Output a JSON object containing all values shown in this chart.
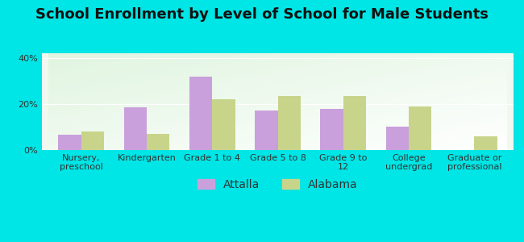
{
  "title": "School Enrollment by Level of School for Male Students",
  "categories": [
    "Nursery,\npreschool",
    "Kindergarten",
    "Grade 1 to 4",
    "Grade 5 to 8",
    "Grade 9 to\n12",
    "College\nundergrad",
    "Graduate or\nprofessional"
  ],
  "attalla": [
    6.5,
    18.5,
    32.0,
    17.0,
    18.0,
    10.0,
    0.0
  ],
  "alabama": [
    8.0,
    7.0,
    22.0,
    23.5,
    23.5,
    19.0,
    6.0
  ],
  "attalla_color": "#c9a0dc",
  "alabama_color": "#c8d48a",
  "ylim": [
    0,
    42
  ],
  "yticks": [
    0,
    20,
    40
  ],
  "ytick_labels": [
    "0%",
    "20%",
    "40%"
  ],
  "bar_width": 0.35,
  "background_color": "#00e5e5",
  "title_fontsize": 13,
  "tick_fontsize": 8,
  "legend_fontsize": 10
}
